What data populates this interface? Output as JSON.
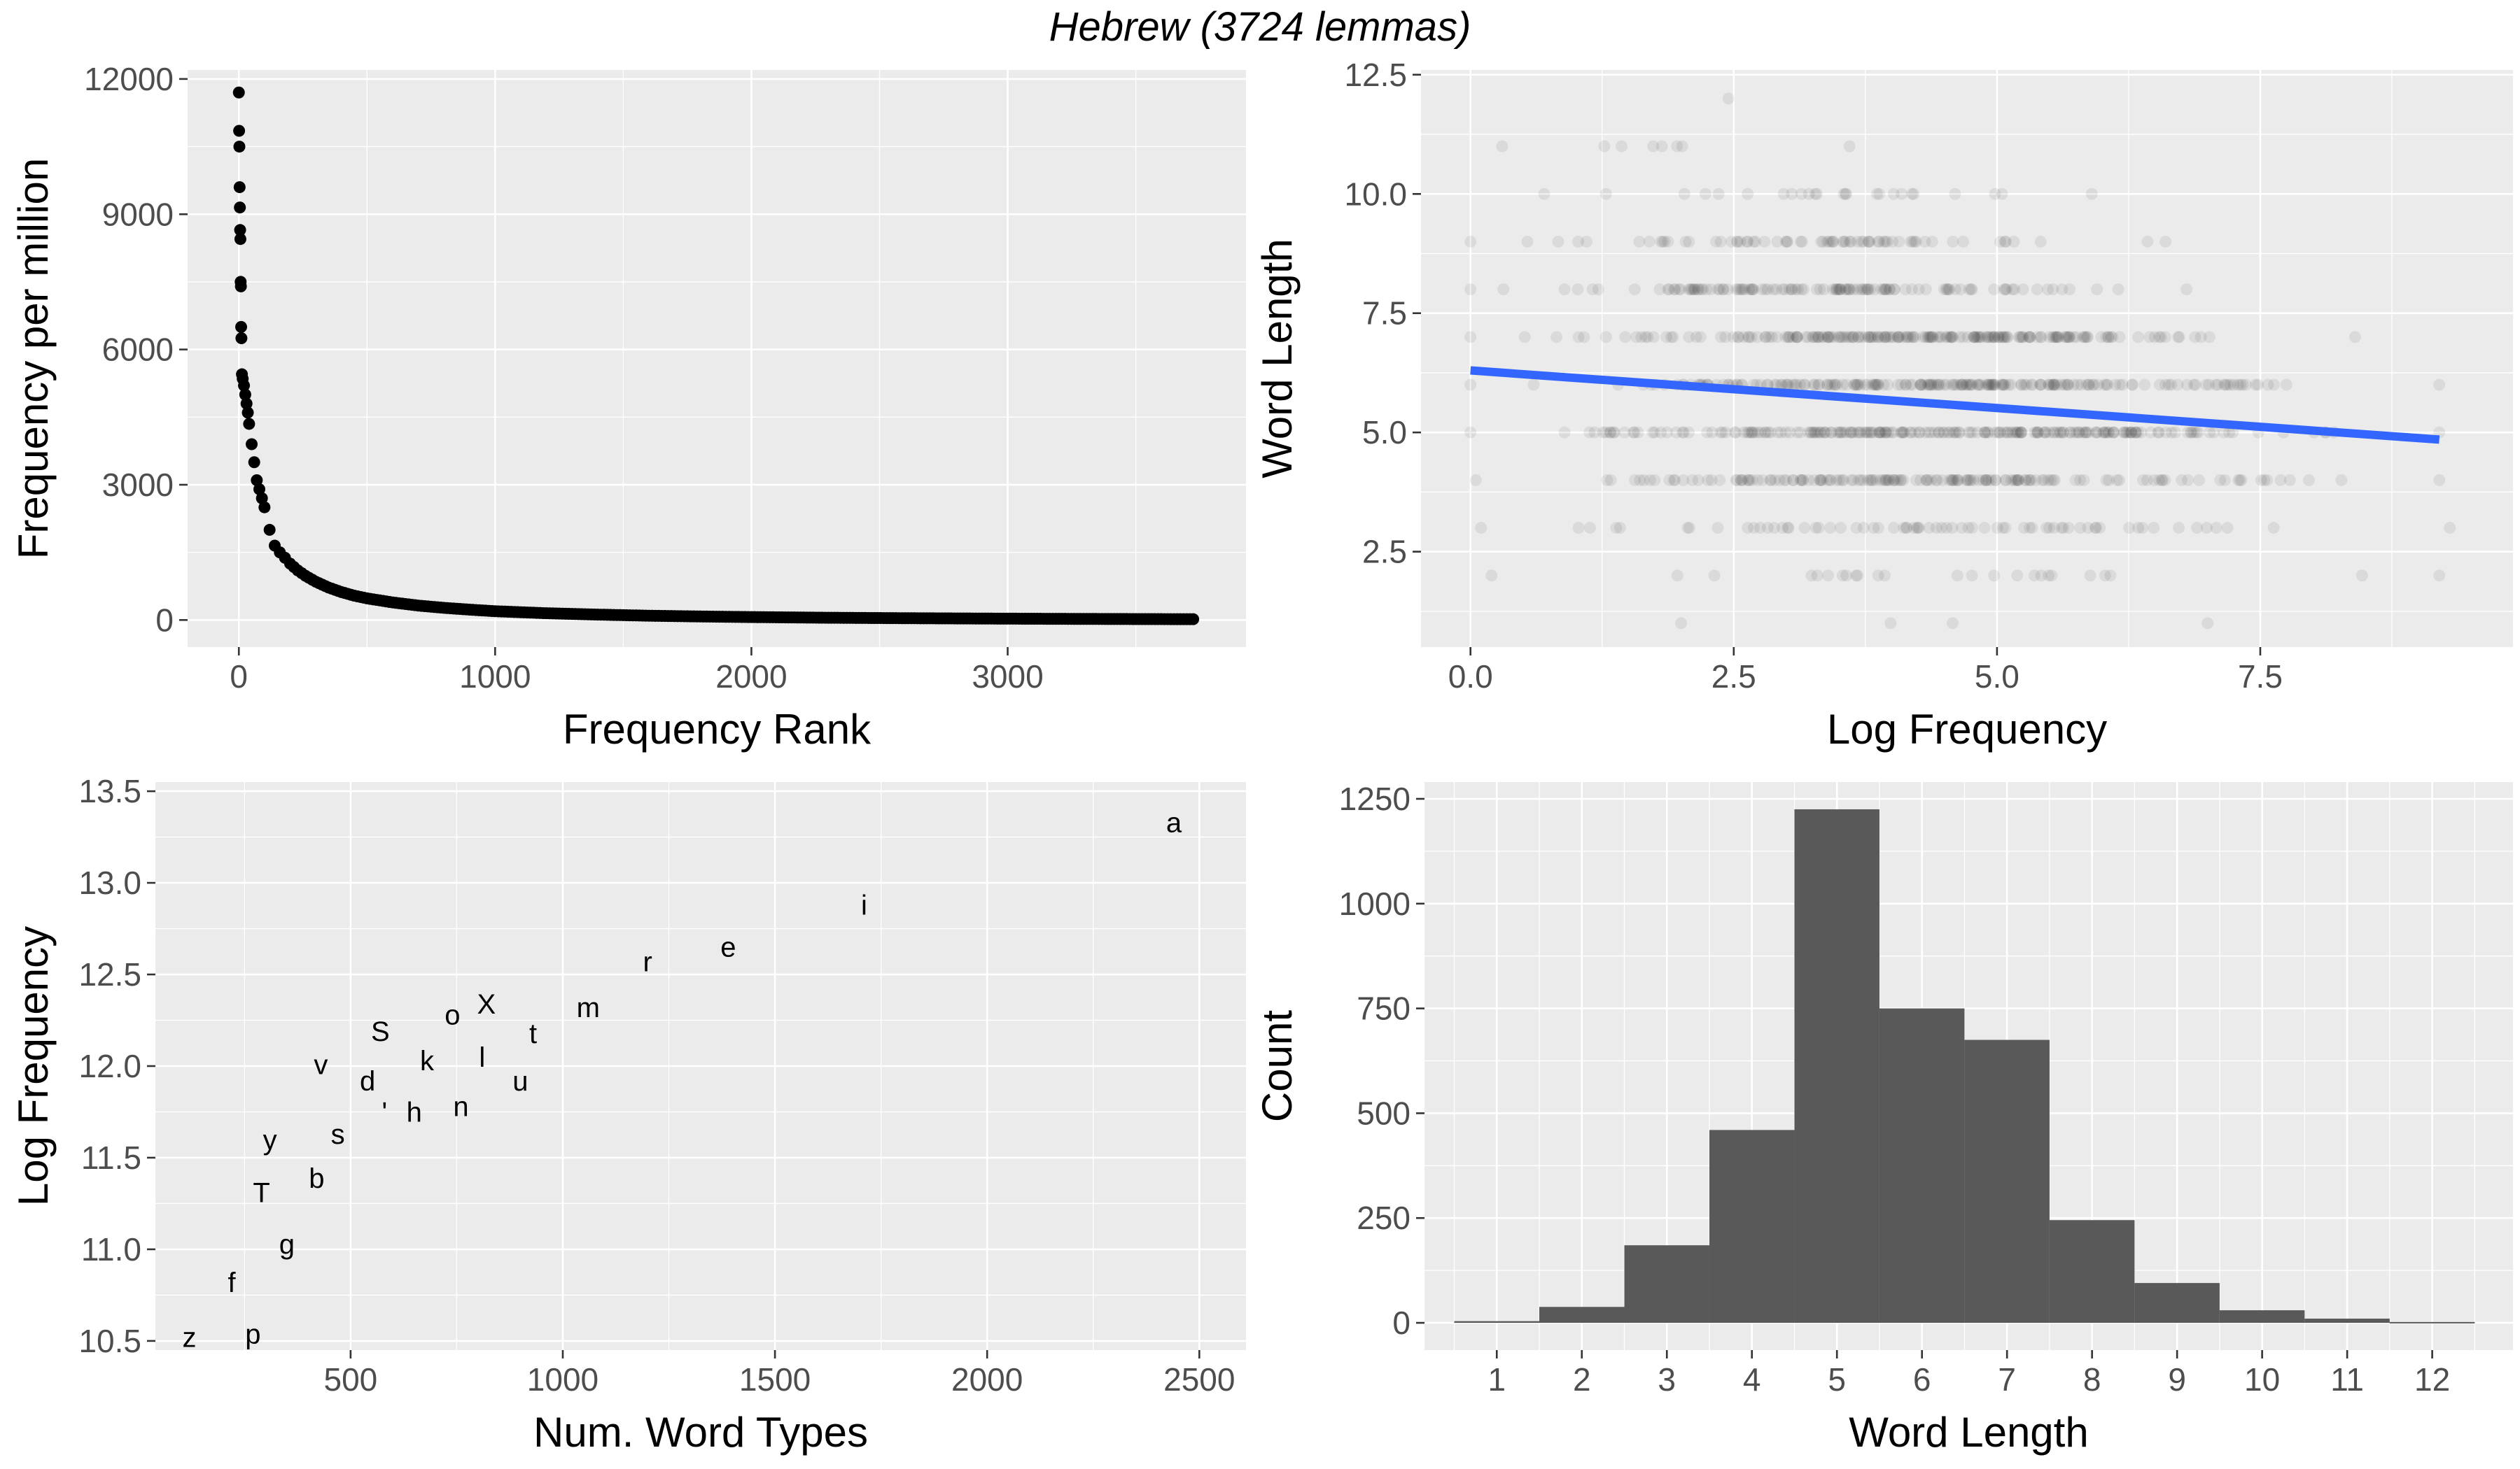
{
  "figure": {
    "title": "Hebrew (3724 lemmas)"
  },
  "colors": {
    "panel_background": "#ebebeb",
    "grid_major": "#ffffff",
    "point": "#000000",
    "regression_line": "#3366ff",
    "bar_fill": "#595959",
    "tick_text": "#4d4d4d"
  },
  "chart_data": [
    {
      "id": "freq-rank",
      "type": "scatter",
      "xlabel": "Frequency Rank",
      "ylabel": "Frequency per million",
      "xlim": [
        -200,
        3930
      ],
      "ylim": [
        -600,
        12200
      ],
      "x_ticks": [
        0,
        1000,
        2000,
        3000
      ],
      "y_ticks": [
        0,
        3000,
        6000,
        9000,
        12000
      ],
      "x_tick_labels": [
        "0",
        "1000",
        "2000",
        "3000"
      ],
      "y_tick_labels": [
        "0",
        "3000",
        "6000",
        "9000",
        "12000"
      ],
      "points": [
        [
          0,
          11700
        ],
        [
          1,
          10850
        ],
        [
          2,
          10500
        ],
        [
          3,
          9600
        ],
        [
          4,
          9150
        ],
        [
          5,
          8650
        ],
        [
          6,
          8450
        ],
        [
          7,
          7500
        ],
        [
          8,
          7400
        ],
        [
          9,
          6500
        ],
        [
          10,
          6250
        ],
        [
          12,
          5450
        ],
        [
          15,
          5350
        ],
        [
          20,
          5200
        ],
        [
          25,
          5000
        ],
        [
          30,
          4800
        ],
        [
          35,
          4600
        ],
        [
          40,
          4350
        ],
        [
          50,
          3900
        ],
        [
          60,
          3500
        ],
        [
          70,
          3100
        ],
        [
          80,
          2900
        ],
        [
          90,
          2700
        ],
        [
          100,
          2500
        ],
        [
          120,
          2000
        ],
        [
          140,
          1650
        ],
        [
          160,
          1500
        ],
        [
          180,
          1380
        ],
        [
          200,
          1250
        ],
        [
          230,
          1100
        ],
        [
          260,
          980
        ],
        [
          300,
          850
        ],
        [
          350,
          720
        ],
        [
          400,
          620
        ],
        [
          450,
          540
        ],
        [
          500,
          480
        ],
        [
          600,
          390
        ],
        [
          700,
          320
        ],
        [
          800,
          270
        ],
        [
          900,
          230
        ],
        [
          1000,
          195
        ],
        [
          1200,
          150
        ],
        [
          1400,
          120
        ],
        [
          1600,
          95
        ],
        [
          1800,
          78
        ],
        [
          2000,
          65
        ],
        [
          2300,
          50
        ],
        [
          2600,
          40
        ],
        [
          2900,
          32
        ],
        [
          3200,
          26
        ],
        [
          3500,
          21
        ],
        [
          3724,
          18
        ]
      ]
    },
    {
      "id": "length-vs-logfreq",
      "type": "scatter",
      "xlabel": "Log Frequency",
      "ylabel": "Word Length",
      "xlim": [
        -0.47,
        9.9
      ],
      "ylim": [
        0.5,
        12.6
      ],
      "x_ticks": [
        0,
        2.5,
        5,
        7.5
      ],
      "y_ticks": [
        2.5,
        5,
        7.5,
        10,
        12.5
      ],
      "x_tick_labels": [
        "0.0",
        "2.5",
        "5.0",
        "7.5"
      ],
      "y_tick_labels": [
        "2.5",
        "5.0",
        "7.5",
        "10.0",
        "12.5"
      ],
      "point_alpha": 0.07,
      "length_ranges": [
        {
          "length": 1,
          "x_min": 2.0,
          "x_max": 7.0,
          "n": 4
        },
        {
          "length": 2,
          "x_min": 0.2,
          "x_max": 9.2,
          "n": 25
        },
        {
          "length": 3,
          "x_min": 0.1,
          "x_max": 9.3,
          "n": 70
        },
        {
          "length": 4,
          "x_min": 0.05,
          "x_max": 9.2,
          "n": 160
        },
        {
          "length": 5,
          "x_min": 0,
          "x_max": 9.2,
          "n": 220
        },
        {
          "length": 6,
          "x_min": 0,
          "x_max": 9.2,
          "n": 200
        },
        {
          "length": 7,
          "x_min": 0,
          "x_max": 8.4,
          "n": 200
        },
        {
          "length": 8,
          "x_min": 0,
          "x_max": 6.8,
          "n": 120
        },
        {
          "length": 9,
          "x_min": 0,
          "x_max": 6.6,
          "n": 70
        },
        {
          "length": 10,
          "x_min": 0.7,
          "x_max": 5.9,
          "n": 25
        },
        {
          "length": 11,
          "x_min": 0.3,
          "x_max": 3.6,
          "n": 8
        },
        {
          "length": 12,
          "x_min": 2.45,
          "x_max": 2.55,
          "n": 1
        }
      ],
      "regression": {
        "x": [
          0,
          9.2
        ],
        "y": [
          6.3,
          4.85
        ]
      }
    },
    {
      "id": "logfreq-vs-types",
      "type": "scatter",
      "xlabel": "Num. Word Types",
      "ylabel": "Log Frequency",
      "xlim": [
        40,
        2610
      ],
      "ylim": [
        10.45,
        13.55
      ],
      "x_ticks": [
        500,
        1000,
        1500,
        2000,
        2500
      ],
      "y_ticks": [
        10.5,
        11.0,
        11.5,
        12.0,
        12.5,
        13.0,
        13.5
      ],
      "x_tick_labels": [
        "500",
        "1000",
        "1500",
        "2000",
        "2500"
      ],
      "y_tick_labels": [
        "10.5",
        "11.0",
        "11.5",
        "12.0",
        "12.5",
        "13.0",
        "13.5"
      ],
      "labels": [
        {
          "text": "a",
          "x": 2440,
          "y": 13.33
        },
        {
          "text": "i",
          "x": 1710,
          "y": 12.88
        },
        {
          "text": "e",
          "x": 1390,
          "y": 12.65
        },
        {
          "text": "r",
          "x": 1200,
          "y": 12.57
        },
        {
          "text": "m",
          "x": 1060,
          "y": 12.32
        },
        {
          "text": "X",
          "x": 820,
          "y": 12.34
        },
        {
          "text": "t",
          "x": 930,
          "y": 12.18
        },
        {
          "text": "o",
          "x": 740,
          "y": 12.28
        },
        {
          "text": "S",
          "x": 570,
          "y": 12.19
        },
        {
          "text": "l",
          "x": 810,
          "y": 12.05
        },
        {
          "text": "k",
          "x": 680,
          "y": 12.03
        },
        {
          "text": "u",
          "x": 900,
          "y": 11.92
        },
        {
          "text": "v",
          "x": 430,
          "y": 12.01
        },
        {
          "text": "d",
          "x": 540,
          "y": 11.92
        },
        {
          "text": "n",
          "x": 760,
          "y": 11.78
        },
        {
          "text": "h",
          "x": 650,
          "y": 11.75
        },
        {
          "text": "'",
          "x": 580,
          "y": 11.75
        },
        {
          "text": "s",
          "x": 470,
          "y": 11.63
        },
        {
          "text": "y",
          "x": 310,
          "y": 11.6
        },
        {
          "text": "b",
          "x": 420,
          "y": 11.39
        },
        {
          "text": "T",
          "x": 290,
          "y": 11.31
        },
        {
          "text": "g",
          "x": 350,
          "y": 11.03
        },
        {
          "text": "f",
          "x": 220,
          "y": 10.82
        },
        {
          "text": "p",
          "x": 270,
          "y": 10.54
        },
        {
          "text": "z",
          "x": 120,
          "y": 10.52
        }
      ]
    },
    {
      "id": "length-histogram",
      "type": "bar",
      "xlabel": "Word Length",
      "ylabel": "Count",
      "xlim": [
        0.15,
        12.95
      ],
      "ylim": [
        -65,
        1290
      ],
      "x_ticks": [
        1,
        2,
        3,
        4,
        5,
        6,
        7,
        8,
        9,
        10,
        11,
        12
      ],
      "y_ticks": [
        0,
        250,
        500,
        750,
        1000,
        1250
      ],
      "x_tick_labels": [
        "1",
        "2",
        "3",
        "4",
        "5",
        "6",
        "7",
        "8",
        "9",
        "10",
        "11",
        "12"
      ],
      "y_tick_labels": [
        "0",
        "250",
        "500",
        "750",
        "1000",
        "1250"
      ],
      "categories": [
        1,
        2,
        3,
        4,
        5,
        6,
        7,
        8,
        9,
        10,
        11,
        12
      ],
      "values": [
        4,
        38,
        185,
        460,
        1225,
        750,
        675,
        245,
        95,
        30,
        10,
        2
      ],
      "bin_width": 1
    }
  ]
}
